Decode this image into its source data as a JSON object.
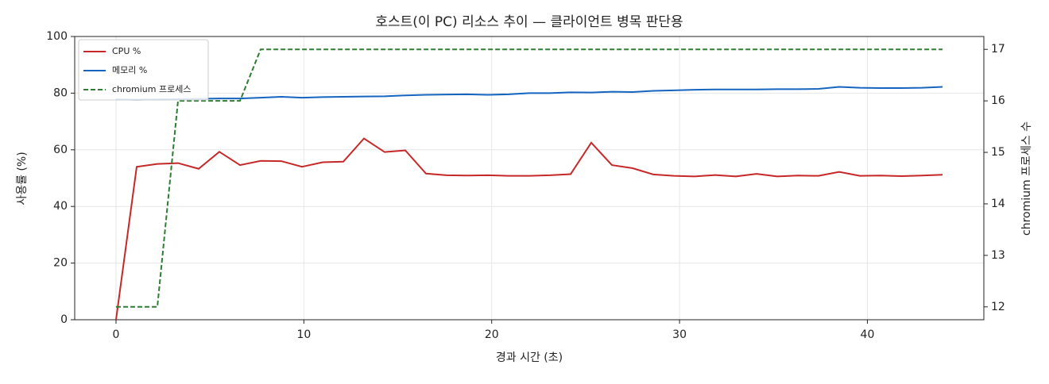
{
  "chart_data": {
    "type": "line",
    "title": "호스트(이 PC) 리소스 추이 — 클라이언트 병목 판단용",
    "xlabel": "경과 시간 (초)",
    "ylabel": "사용률 (%)",
    "y2label": "chromium 프로세스 수",
    "x": [
      0,
      1.1,
      2.2,
      3.3,
      4.4,
      5.5,
      6.6,
      7.7,
      8.8,
      9.9,
      11.0,
      12.1,
      13.2,
      14.3,
      15.4,
      16.5,
      17.6,
      18.7,
      19.8,
      20.9,
      22.0,
      23.1,
      24.2,
      25.3,
      26.4,
      27.5,
      28.6,
      29.7,
      30.8,
      31.9,
      33.0,
      34.1,
      35.2,
      36.3,
      37.4,
      38.5,
      39.6,
      40.7,
      41.8,
      42.9,
      44.0
    ],
    "series": [
      {
        "name": "CPU %",
        "color": "#c62828",
        "values": [
          0,
          54,
          55,
          55.3,
          53.3,
          59.3,
          54.6,
          56.1,
          56,
          54,
          55.6,
          55.8,
          64,
          59.2,
          59.8,
          51.6,
          51,
          50.9,
          51,
          50.8,
          50.8,
          51,
          51.4,
          62.5,
          54.6,
          53.5,
          51.3,
          50.8,
          50.6,
          51.1,
          50.6,
          51.5,
          50.6,
          50.9,
          50.8,
          52.2,
          50.8,
          50.9,
          50.7,
          50.9,
          51.2
        ]
      },
      {
        "name": "메모리 %",
        "color": "#1565c0",
        "values": [
          77.8,
          77.7,
          77.8,
          77.9,
          78,
          78.1,
          78.1,
          78.4,
          78.7,
          78.4,
          78.6,
          78.7,
          78.8,
          78.9,
          79.2,
          79.4,
          79.5,
          79.6,
          79.4,
          79.6,
          80,
          80,
          80.3,
          80.2,
          80.5,
          80.4,
          80.8,
          81,
          81.2,
          81.3,
          81.3,
          81.3,
          81.4,
          81.4,
          81.5,
          82.2,
          81.9,
          81.8,
          81.8,
          81.9,
          82.2
        ]
      },
      {
        "name": "chromium 프로세스",
        "color": "#2e7d32",
        "dashed": true,
        "axis": "y2",
        "values": [
          12,
          12,
          12,
          16,
          16,
          16,
          16,
          17,
          17,
          17,
          17,
          17,
          17,
          17,
          17,
          17,
          17,
          17,
          17,
          17,
          17,
          17,
          17,
          17,
          17,
          17,
          17,
          17,
          17,
          17,
          17,
          17,
          17,
          17,
          17,
          17,
          17,
          17,
          17,
          17,
          17
        ]
      }
    ],
    "xlim": [
      -2.2,
      46.2
    ],
    "xticks": [
      0,
      10,
      20,
      30,
      40
    ],
    "ylim": [
      0,
      100
    ],
    "yticks": [
      0,
      20,
      40,
      60,
      80,
      100
    ],
    "y2lim": [
      11.75,
      17.25
    ],
    "y2ticks": [
      12,
      13,
      14,
      15,
      16,
      17
    ],
    "grid": true,
    "legend": "upper-left"
  }
}
